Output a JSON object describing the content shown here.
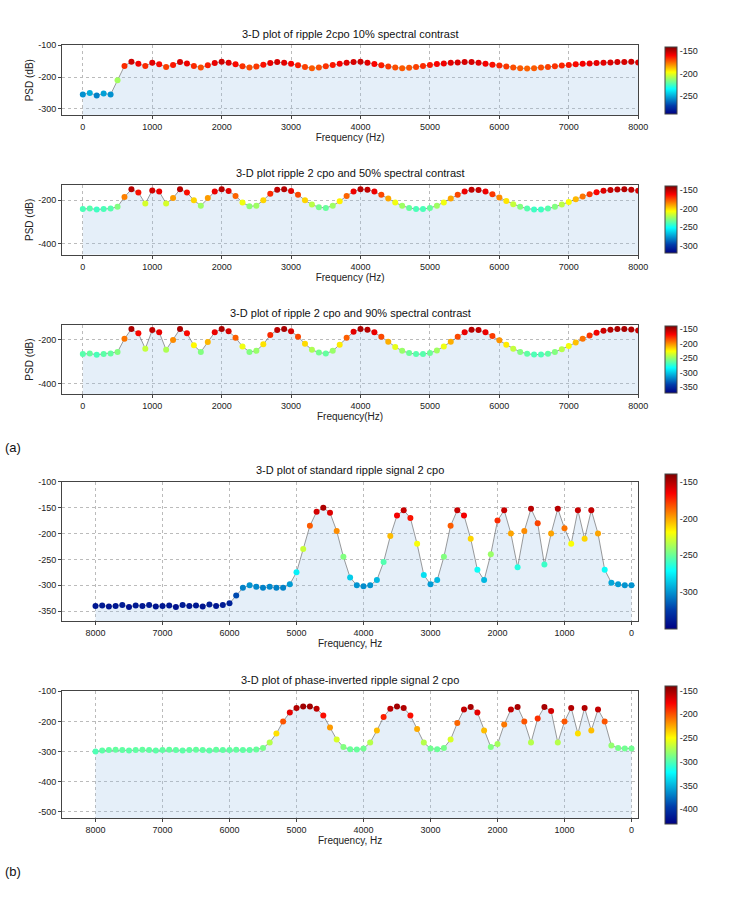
{
  "chart_data": [
    {
      "type": "scatter",
      "title": "3-D plot of ripple 2cpo 10% spectral contrast",
      "x_label": "Frequency (Hz)",
      "y_label": "PSD (dB)",
      "color": "Jet",
      "grid": true,
      "xlim": [
        -300,
        8000
      ],
      "xticks": [
        0,
        1000,
        2000,
        3000,
        4000,
        5000,
        6000,
        7000,
        8000
      ],
      "ylim": [
        -320,
        -100
      ],
      "yticks": [
        -300,
        -200,
        -100
      ],
      "colorbar": {
        "range": [
          -290,
          -140
        ],
        "ticks": [
          -250,
          -200,
          -150
        ]
      },
      "x": [
        0,
        100,
        200,
        300,
        400,
        500,
        600,
        700,
        800,
        900,
        1000,
        1100,
        1200,
        1300,
        1400,
        1500,
        1600,
        1700,
        1800,
        1900,
        2000,
        2100,
        2200,
        2300,
        2400,
        2500,
        2600,
        2700,
        2800,
        2900,
        3000,
        3100,
        3200,
        3300,
        3400,
        3500,
        3600,
        3700,
        3800,
        3900,
        4000,
        4100,
        4200,
        4300,
        4400,
        4500,
        4600,
        4700,
        4800,
        4900,
        5000,
        5100,
        5200,
        5300,
        5400,
        5500,
        5600,
        5700,
        5800,
        5900,
        6000,
        6100,
        6200,
        6300,
        6400,
        6500,
        6600,
        6700,
        6800,
        6900,
        7000,
        7100,
        7200,
        7300,
        7400,
        7500,
        7600,
        7700,
        7800,
        7900,
        8000
      ],
      "values": [
        -255,
        -250,
        -258,
        -252,
        -255,
        -210,
        -165,
        -152,
        -158,
        -165,
        -155,
        -160,
        -168,
        -162,
        -153,
        -157,
        -165,
        -170,
        -163,
        -156,
        -152,
        -155,
        -160,
        -166,
        -170,
        -167,
        -161,
        -156,
        -153,
        -155,
        -158,
        -163,
        -168,
        -172,
        -170,
        -166,
        -162,
        -158,
        -155,
        -153,
        -152,
        -155,
        -159,
        -163,
        -167,
        -170,
        -172,
        -171,
        -168,
        -165,
        -162,
        -159,
        -157,
        -155,
        -154,
        -153,
        -153,
        -155,
        -158,
        -161,
        -164,
        -167,
        -170,
        -172,
        -173,
        -172,
        -170,
        -168,
        -166,
        -164,
        -162,
        -160,
        -158,
        -157,
        -156,
        -155,
        -154,
        -153,
        -153,
        -152,
        -154
      ]
    },
    {
      "type": "scatter",
      "title": "3-D plot ripple 2 cpo and 50% spectral contrast",
      "x_label": "Frequency (Hz)",
      "y_label": "PSD (dB)",
      "color": "Jet",
      "grid": true,
      "xlim": [
        -300,
        8000
      ],
      "xticks": [
        0,
        1000,
        2000,
        3000,
        4000,
        5000,
        6000,
        7000,
        8000
      ],
      "ylim": [
        -450,
        -130
      ],
      "yticks": [
        -400,
        -200
      ],
      "colorbar": {
        "range": [
          -320,
          -140
        ],
        "ticks": [
          -300,
          -250,
          -200,
          -150
        ]
      },
      "x": [
        0,
        100,
        200,
        300,
        400,
        500,
        600,
        700,
        800,
        900,
        1000,
        1100,
        1200,
        1300,
        1400,
        1500,
        1600,
        1700,
        1800,
        1900,
        2000,
        2100,
        2200,
        2300,
        2400,
        2500,
        2600,
        2700,
        2800,
        2900,
        3000,
        3100,
        3200,
        3300,
        3400,
        3500,
        3600,
        3700,
        3800,
        3900,
        4000,
        4100,
        4200,
        4300,
        4400,
        4500,
        4600,
        4700,
        4800,
        4900,
        5000,
        5100,
        5200,
        5300,
        5400,
        5500,
        5600,
        5700,
        5800,
        5900,
        6000,
        6100,
        6200,
        6300,
        6400,
        6500,
        6600,
        6700,
        6800,
        6900,
        7000,
        7100,
        7200,
        7300,
        7400,
        7500,
        7600,
        7700,
        7800,
        7900,
        8000
      ],
      "values": [
        -240,
        -238,
        -242,
        -240,
        -238,
        -230,
        -185,
        -150,
        -165,
        -215,
        -155,
        -160,
        -215,
        -190,
        -150,
        -165,
        -200,
        -225,
        -190,
        -160,
        -150,
        -158,
        -180,
        -210,
        -228,
        -225,
        -200,
        -170,
        -152,
        -150,
        -158,
        -175,
        -200,
        -220,
        -232,
        -235,
        -225,
        -205,
        -180,
        -160,
        -150,
        -152,
        -160,
        -175,
        -192,
        -210,
        -225,
        -235,
        -240,
        -240,
        -235,
        -225,
        -210,
        -192,
        -175,
        -160,
        -152,
        -153,
        -160,
        -172,
        -187,
        -203,
        -218,
        -230,
        -238,
        -242,
        -242,
        -238,
        -230,
        -220,
        -208,
        -195,
        -183,
        -172,
        -163,
        -157,
        -153,
        -151,
        -150,
        -152,
        -156
      ]
    },
    {
      "type": "scatter",
      "title": "3-D plot of ripple 2 cpo and 90% spectral contrast",
      "x_label": "Frequency(Hz)",
      "y_label": "PSD (dB)",
      "color": "Jet",
      "grid": true,
      "panel_label": "(a)",
      "xlim": [
        -300,
        8000
      ],
      "xticks": [
        0,
        1000,
        2000,
        3000,
        4000,
        5000,
        6000,
        7000,
        8000
      ],
      "ylim": [
        -450,
        -130
      ],
      "yticks": [
        -400,
        -200
      ],
      "colorbar": {
        "range": [
          -370,
          -140
        ],
        "ticks": [
          -350,
          -300,
          -250,
          -200,
          -150
        ]
      },
      "x": [
        0,
        100,
        200,
        300,
        400,
        500,
        600,
        700,
        800,
        900,
        1000,
        1100,
        1200,
        1300,
        1400,
        1500,
        1600,
        1700,
        1800,
        1900,
        2000,
        2100,
        2200,
        2300,
        2400,
        2500,
        2600,
        2700,
        2800,
        2900,
        3000,
        3100,
        3200,
        3300,
        3400,
        3500,
        3600,
        3700,
        3800,
        3900,
        4000,
        4100,
        4200,
        4300,
        4400,
        4500,
        4600,
        4700,
        4800,
        4900,
        5000,
        5100,
        5200,
        5300,
        5400,
        5500,
        5600,
        5700,
        5800,
        5900,
        6000,
        6100,
        6200,
        6300,
        6400,
        6500,
        6600,
        6700,
        6800,
        6900,
        7000,
        7100,
        7200,
        7300,
        7400,
        7500,
        7600,
        7700,
        7800,
        7900,
        8000
      ],
      "values": [
        -265,
        -262,
        -268,
        -264,
        -262,
        -255,
        -195,
        -150,
        -170,
        -240,
        -155,
        -165,
        -245,
        -200,
        -150,
        -170,
        -225,
        -255,
        -210,
        -165,
        -150,
        -160,
        -190,
        -230,
        -255,
        -250,
        -220,
        -178,
        -154,
        -150,
        -160,
        -185,
        -218,
        -245,
        -258,
        -262,
        -250,
        -222,
        -190,
        -163,
        -150,
        -153,
        -165,
        -185,
        -208,
        -232,
        -250,
        -260,
        -265,
        -265,
        -260,
        -248,
        -230,
        -208,
        -185,
        -165,
        -153,
        -155,
        -165,
        -182,
        -202,
        -222,
        -240,
        -255,
        -263,
        -267,
        -267,
        -263,
        -255,
        -243,
        -228,
        -212,
        -195,
        -180,
        -167,
        -158,
        -153,
        -150,
        -150,
        -152,
        -157
      ]
    },
    {
      "type": "scatter",
      "title": "3-D plot of standard ripple signal 2 cpo",
      "x_label": "Frequency, Hz",
      "color": "Jet",
      "grid": true,
      "xlim": [
        8500,
        -100
      ],
      "xticks": [
        0,
        1000,
        2000,
        3000,
        4000,
        5000,
        6000,
        7000,
        8000
      ],
      "ylim": [
        -370,
        -100
      ],
      "yticks": [
        -350,
        -300,
        -250,
        -200,
        -150,
        -100
      ],
      "colorbar": {
        "range": [
          -350,
          -140
        ],
        "ticks": [
          -300,
          -250,
          -200,
          -150
        ]
      },
      "x": [
        0,
        100,
        200,
        300,
        400,
        500,
        600,
        700,
        800,
        900,
        1000,
        1100,
        1200,
        1300,
        1400,
        1500,
        1600,
        1700,
        1800,
        1900,
        2000,
        2100,
        2200,
        2300,
        2400,
        2500,
        2600,
        2700,
        2800,
        2900,
        3000,
        3100,
        3200,
        3300,
        3400,
        3500,
        3600,
        3700,
        3800,
        3900,
        4000,
        4100,
        4200,
        4300,
        4400,
        4500,
        4600,
        4700,
        4800,
        4900,
        5000,
        5100,
        5200,
        5300,
        5400,
        5500,
        5600,
        5700,
        5800,
        5900,
        6000,
        6100,
        6200,
        6300,
        6400,
        6500,
        6600,
        6700,
        6800,
        6900,
        7000,
        7100,
        7200,
        7300,
        7400,
        7500,
        7600,
        7700,
        7800,
        7900,
        8000
      ],
      "values": [
        -300,
        -300,
        -298,
        -295,
        -270,
        -200,
        -155,
        -210,
        -155,
        -220,
        -190,
        -152,
        -200,
        -260,
        -180,
        -152,
        -195,
        -265,
        -200,
        -155,
        -175,
        -240,
        -290,
        -270,
        -210,
        -165,
        -155,
        -185,
        -245,
        -290,
        -298,
        -280,
        -220,
        -170,
        -155,
        -165,
        -205,
        -255,
        -290,
        -300,
        -302,
        -300,
        -285,
        -245,
        -195,
        -160,
        -150,
        -158,
        -185,
        -230,
        -275,
        -298,
        -305,
        -305,
        -303,
        -305,
        -303,
        -300,
        -305,
        -320,
        -335,
        -338,
        -340,
        -337,
        -341,
        -339,
        -340,
        -338,
        -342,
        -339,
        -340,
        -341,
        -338,
        -340,
        -339,
        -342,
        -338,
        -340,
        -341,
        -339,
        -340
      ]
    },
    {
      "type": "scatter",
      "title": "3-D plot of phase-inverted ripple signal 2 cpo",
      "x_label": "Frequency, Hz",
      "color": "Jet",
      "grid": true,
      "panel_label": "(b)",
      "xlim": [
        8500,
        -100
      ],
      "xticks": [
        0,
        1000,
        2000,
        3000,
        4000,
        5000,
        6000,
        7000,
        8000
      ],
      "ylim": [
        -520,
        -100
      ],
      "yticks": [
        -500,
        -400,
        -300,
        -200,
        -100
      ],
      "colorbar": {
        "range": [
          -430,
          -140
        ],
        "ticks": [
          -400,
          -350,
          -300,
          -250,
          -200,
          -150
        ]
      },
      "x": [
        0,
        100,
        200,
        300,
        400,
        500,
        600,
        700,
        800,
        900,
        1000,
        1100,
        1200,
        1300,
        1400,
        1500,
        1600,
        1700,
        1800,
        1900,
        2000,
        2100,
        2200,
        2300,
        2400,
        2500,
        2600,
        2700,
        2800,
        2900,
        3000,
        3100,
        3200,
        3300,
        3400,
        3500,
        3600,
        3700,
        3800,
        3900,
        4000,
        4100,
        4200,
        4300,
        4400,
        4500,
        4600,
        4700,
        4800,
        4900,
        5000,
        5100,
        5200,
        5300,
        5400,
        5500,
        5600,
        5700,
        5800,
        5900,
        6000,
        6100,
        6200,
        6300,
        6400,
        6500,
        6600,
        6700,
        6800,
        6900,
        7000,
        7100,
        7200,
        7300,
        7400,
        7500,
        7600,
        7700,
        7800,
        7900,
        8000
      ],
      "values": [
        -290,
        -290,
        -288,
        -280,
        -200,
        -160,
        -230,
        -155,
        -240,
        -155,
        -200,
        -270,
        -165,
        -152,
        -190,
        -270,
        -200,
        -152,
        -160,
        -210,
        -275,
        -285,
        -230,
        -170,
        -152,
        -160,
        -205,
        -260,
        -288,
        -292,
        -290,
        -270,
        -225,
        -180,
        -155,
        -150,
        -158,
        -185,
        -230,
        -270,
        -290,
        -293,
        -292,
        -285,
        -260,
        -220,
        -180,
        -158,
        -150,
        -150,
        -155,
        -170,
        -200,
        -240,
        -270,
        -288,
        -293,
        -295,
        -295,
        -294,
        -295,
        -295,
        -294,
        -296,
        -295,
        -294,
        -295,
        -296,
        -295,
        -294,
        -295,
        -296,
        -295,
        -294,
        -295,
        -296,
        -295,
        -294,
        -295,
        -296,
        -300
      ]
    }
  ]
}
